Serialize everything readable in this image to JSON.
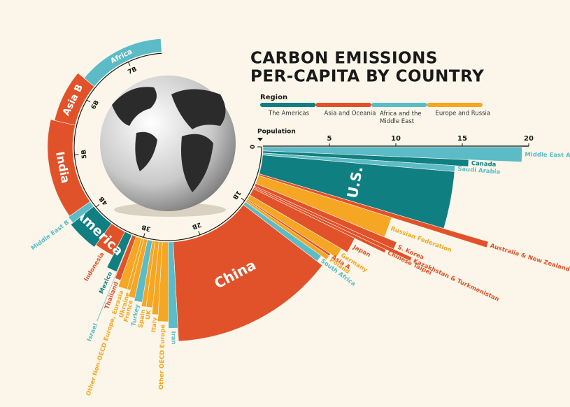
{
  "chart_data": {
    "type": "radial-bar",
    "title": [
      "CARBON EMISSIONS",
      "PER-CAPITA BY COUNTRY"
    ],
    "legend_title": "Region",
    "regions": [
      {
        "name": "The Americas",
        "color": "#0f7f82"
      },
      {
        "name": "Asia and Oceania",
        "color": "#e2522a"
      },
      {
        "name": "Africa and the Middle East",
        "color": "#5bbcc8"
      },
      {
        "name": "Europe and Russia",
        "color": "#f5a623"
      }
    ],
    "population_label": "Population",
    "categories": [
      "Middle East A",
      "Canada",
      "Saudi Arabia",
      "U.S.",
      "Australia & New Zealand",
      "Russian Federation",
      "S. Korea",
      "Kazakhstan & Turkmenistan",
      "Chinese Taipei",
      "Japan",
      "Germany",
      "Asia A",
      "Poland",
      "South Africa",
      "China",
      "Iran",
      "Other OECD Europe",
      "Italy",
      "UK",
      "Spain",
      "Turkey",
      "France",
      "Ukraine",
      "Other Non-OECD Europe, Eurasia",
      "Thailand",
      "Israel",
      "Mexico",
      "Indonesia",
      "S. America",
      "Middle East B",
      "India",
      "Asia B",
      "Africa"
    ],
    "region": [
      "Africa and the Middle East",
      "The Americas",
      "Africa and the Middle East",
      "The Americas",
      "Asia and Oceania",
      "Europe and Russia",
      "Asia and Oceania",
      "Asia and Oceania",
      "Asia and Oceania",
      "Asia and Oceania",
      "Europe and Russia",
      "Asia and Oceania",
      "Europe and Russia",
      "Africa and the Middle East",
      "Asia and Oceania",
      "Africa and the Middle East",
      "Europe and Russia",
      "Europe and Russia",
      "Europe and Russia",
      "Europe and Russia",
      "Africa and the Middle East",
      "Europe and Russia",
      "Europe and Russia",
      "Europe and Russia",
      "Asia and Oceania",
      "Africa and the Middle East",
      "The Americas",
      "Asia and Oceania",
      "The Americas",
      "Africa and the Middle East",
      "Asia and Oceania",
      "Asia and Oceania",
      "Africa and the Middle East"
    ],
    "population": [
      0.07,
      0.037,
      0.034,
      0.33,
      0.03,
      0.145,
      0.05,
      0.025,
      0.024,
      0.125,
      0.083,
      0.02,
      0.038,
      0.06,
      1.41,
      0.085,
      0.1,
      0.06,
      0.067,
      0.047,
      0.084,
      0.065,
      0.04,
      0.1,
      0.07,
      0.009,
      0.13,
      0.27,
      0.43,
      0.1,
      1.38,
      0.75,
      1.34
    ],
    "values": [
      19.5,
      15.5,
      14.5,
      14.5,
      18,
      10.5,
      11.5,
      13,
      11,
      8.5,
      8,
      7.5,
      7.5,
      7,
      7.5,
      6.5,
      6,
      5.5,
      5,
      5,
      4.7,
      4.5,
      4,
      4,
      3.5,
      7,
      3,
      2,
      2.2,
      2,
      1.9,
      1.6,
      1
    ],
    "xlim": [
      0,
      20
    ],
    "xticks": [
      5,
      10,
      15,
      20
    ],
    "population_ticks": [
      0,
      {
        "value": 1,
        "label": "1B"
      },
      {
        "value": 2,
        "label": "2B"
      },
      {
        "value": 3,
        "label": "3B"
      },
      {
        "value": 4,
        "label": "4B"
      },
      {
        "value": 5,
        "label": "5B"
      },
      {
        "value": 6,
        "label": "6B"
      },
      {
        "value": 7,
        "label": "7B"
      }
    ]
  }
}
